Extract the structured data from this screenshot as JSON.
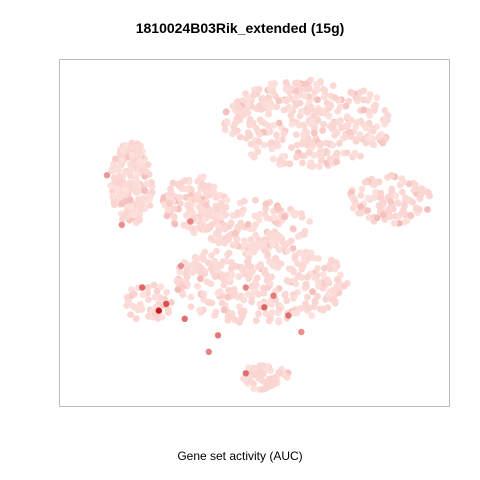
{
  "chart_data": {
    "type": "scatter",
    "title": "1810024B03Rik_extended (15g)",
    "xlabel": "Gene set activity (AUC)",
    "ylabel": "",
    "axes_visible": false,
    "grid": false,
    "legend": "none",
    "color_scale": {
      "low": "#fde0dc",
      "high": "#c81414"
    },
    "clusters": [
      {
        "name": "",
        "x": [
          -0.78,
          -0.55
        ],
        "y": [
          0.05,
          0.55
        ],
        "n": 190
      },
      {
        "name": "",
        "x": [
          -0.5,
          -0.15
        ],
        "y": [
          0.0,
          0.35
        ],
        "n": 140
      },
      {
        "name": "",
        "x": [
          -0.18,
          0.75
        ],
        "y": [
          0.4,
          0.93
        ],
        "n": 360
      },
      {
        "name": "",
        "x": [
          0.5,
          0.95
        ],
        "y": [
          0.05,
          0.35
        ],
        "n": 110
      },
      {
        "name": "",
        "x": [
          -0.3,
          0.3
        ],
        "y": [
          -0.1,
          0.2
        ],
        "n": 130
      },
      {
        "name": "",
        "x": [
          -0.45,
          0.5
        ],
        "y": [
          -0.55,
          -0.05
        ],
        "n": 330
      },
      {
        "name": "",
        "x": [
          -0.7,
          -0.45
        ],
        "y": [
          -0.55,
          -0.3
        ],
        "n": 45
      },
      {
        "name": "",
        "x": [
          -0.1,
          0.2
        ],
        "y": [
          -0.95,
          -0.8
        ],
        "n": 50
      }
    ],
    "highlight_points": [
      {
        "x": -0.52,
        "y": -0.47,
        "auc": 0.95
      },
      {
        "x": -0.48,
        "y": -0.43,
        "auc": 0.7
      },
      {
        "x": -0.61,
        "y": -0.33,
        "auc": 0.6
      },
      {
        "x": -0.38,
        "y": -0.52,
        "auc": 0.55
      },
      {
        "x": 0.05,
        "y": -0.45,
        "auc": 0.6
      },
      {
        "x": 0.1,
        "y": -0.38,
        "auc": 0.5
      },
      {
        "x": 0.18,
        "y": -0.5,
        "auc": 0.55
      },
      {
        "x": -0.05,
        "y": -0.33,
        "auc": 0.45
      },
      {
        "x": -0.2,
        "y": -0.62,
        "auc": 0.5
      },
      {
        "x": -0.25,
        "y": -0.72,
        "auc": 0.45
      },
      {
        "x": -0.05,
        "y": -0.85,
        "auc": 0.55
      },
      {
        "x": 0.25,
        "y": -0.6,
        "auc": 0.4
      },
      {
        "x": -0.72,
        "y": 0.05,
        "auc": 0.4
      },
      {
        "x": -0.35,
        "y": 0.07,
        "auc": 0.45
      },
      {
        "x": -0.4,
        "y": -0.2,
        "auc": 0.4
      },
      {
        "x": -0.8,
        "y": 0.35,
        "auc": 0.35
      }
    ]
  }
}
